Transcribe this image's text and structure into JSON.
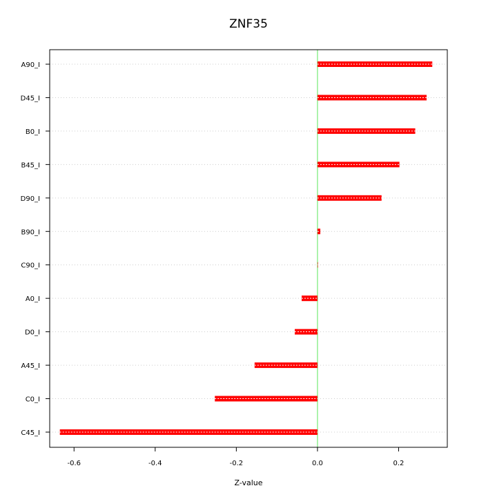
{
  "chart_data": {
    "type": "bar",
    "orientation": "horizontal",
    "title": "ZNF35",
    "xlabel": "Z-value",
    "ylabel": "",
    "xlim": [
      -0.66,
      0.32
    ],
    "xticks": [
      -0.6,
      -0.4,
      -0.2,
      0.0,
      0.2
    ],
    "xtick_labels": [
      "-0.6",
      "-0.4",
      "-0.2",
      "0.0",
      "0.2"
    ],
    "grid": "horizontal dotted",
    "zero_line": true,
    "categories": [
      "A90_I",
      "D45_I",
      "B0_I",
      "B45_I",
      "D90_I",
      "B90_I",
      "C90_I",
      "A0_I",
      "D0_I",
      "A45_I",
      "C0_I",
      "C45_I"
    ],
    "values": [
      0.283,
      0.269,
      0.241,
      0.202,
      0.158,
      0.007,
      0.0,
      -0.039,
      -0.056,
      -0.155,
      -0.253,
      -0.635
    ],
    "colors": {
      "bar": "#ff0000",
      "bar_stripe": "#ffffff",
      "zero_line": "#90ee90",
      "grid": "#cccccc",
      "frame": "#000000"
    }
  }
}
